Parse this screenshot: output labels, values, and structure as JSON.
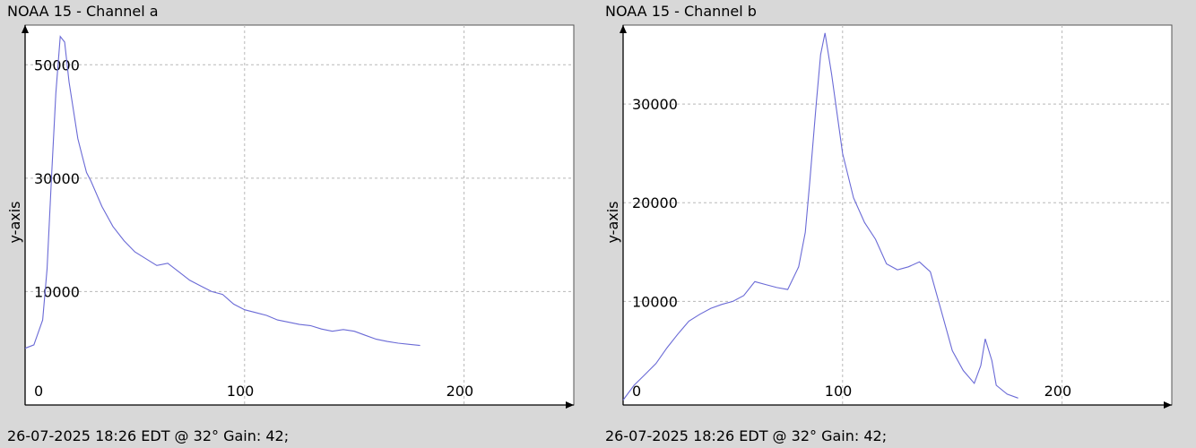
{
  "colors": {
    "background": "#d8d8d8",
    "plot_bg": "#ffffff",
    "line": "#6a6ad6",
    "grid": "#b8b8b8",
    "axis": "#000000"
  },
  "panels": [
    {
      "title": "NOAA 15 - Channel a",
      "footer": "26-07-2025 18:26 EDT @ 32° Gain: 42;"
    },
    {
      "title": "NOAA 15 - Channel b",
      "footer": "26-07-2025 18:26 EDT @ 32° Gain: 42;"
    }
  ],
  "chart_data": [
    {
      "type": "line",
      "title": "NOAA 15 - Channel a",
      "xlabel": "",
      "ylabel": "y-axis",
      "xlim": [
        0,
        250
      ],
      "ylim": [
        -10000,
        57000
      ],
      "x_ticks": [
        0,
        100,
        200
      ],
      "y_ticks": [
        10000,
        30000,
        50000
      ],
      "grid": true,
      "x": [
        0,
        4,
        8,
        10,
        12,
        14,
        16,
        18,
        20,
        22,
        24,
        26,
        28,
        30,
        35,
        40,
        45,
        50,
        55,
        60,
        65,
        70,
        75,
        80,
        85,
        90,
        95,
        100,
        105,
        110,
        115,
        120,
        125,
        130,
        135,
        140,
        145,
        150,
        155,
        160,
        165,
        170,
        175,
        180
      ],
      "values": [
        0,
        600,
        5000,
        14000,
        30000,
        45000,
        55000,
        54000,
        47000,
        42000,
        37000,
        34000,
        31000,
        29500,
        25000,
        21500,
        19000,
        17000,
        15800,
        14600,
        15000,
        13500,
        12000,
        11000,
        10000,
        9500,
        7800,
        6800,
        6300,
        5800,
        5000,
        4600,
        4200,
        4000,
        3400,
        3000,
        3300,
        3000,
        2300,
        1600,
        1200,
        900,
        700,
        500
      ]
    },
    {
      "type": "line",
      "title": "NOAA 15 - Channel b",
      "xlabel": "",
      "ylabel": "y-axis",
      "xlim": [
        0,
        250
      ],
      "ylim": [
        -500,
        38000
      ],
      "x_ticks": [
        0,
        100,
        200
      ],
      "y_ticks": [
        10000,
        20000,
        30000
      ],
      "grid": true,
      "x": [
        0,
        5,
        10,
        15,
        20,
        25,
        30,
        35,
        40,
        45,
        50,
        55,
        60,
        65,
        70,
        75,
        80,
        83,
        85,
        88,
        90,
        92,
        95,
        100,
        105,
        110,
        115,
        120,
        125,
        130,
        135,
        140,
        145,
        150,
        155,
        160,
        163,
        165,
        168,
        170,
        175,
        180
      ],
      "values": [
        0,
        1500,
        2600,
        3700,
        5300,
        6700,
        8000,
        8700,
        9300,
        9700,
        10000,
        10600,
        12000,
        11700,
        11400,
        11200,
        13500,
        17000,
        22000,
        30000,
        35000,
        37200,
        33000,
        25000,
        20500,
        18000,
        16300,
        13800,
        13200,
        13500,
        14000,
        13000,
        9000,
        5000,
        3000,
        1700,
        3500,
        6200,
        4000,
        1500,
        600,
        200
      ]
    }
  ]
}
